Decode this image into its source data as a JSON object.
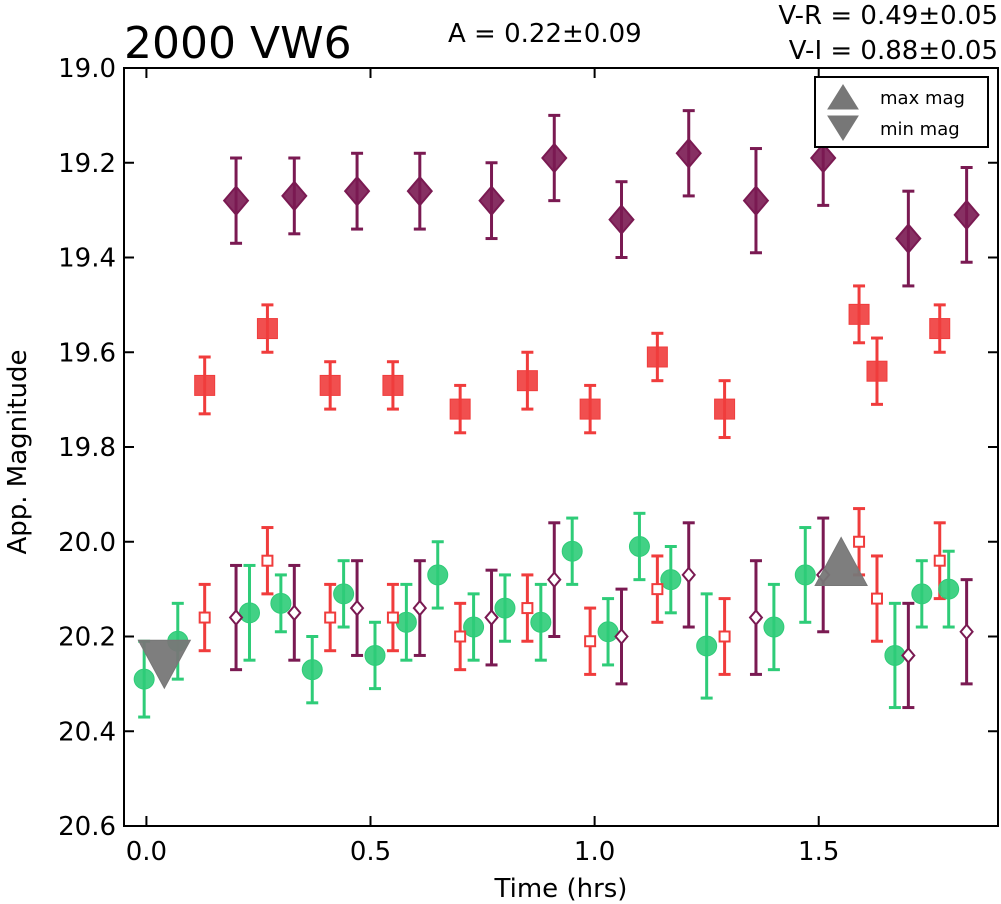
{
  "chart_data": {
    "type": "scatter",
    "title": "2000 VW6",
    "annotations": {
      "amplitude": "A  = 0.22±0.09",
      "v_r": "V-R = 0.49±0.05",
      "v_i": "V-I  = 0.88±0.05"
    },
    "xlabel": "Time (hrs)",
    "ylabel": "App. Magnitude",
    "xlim": [
      -0.05,
      1.9
    ],
    "ylim": [
      20.6,
      19.0
    ],
    "y_inverted": true,
    "grid": false,
    "x_ticks": [
      "0.0",
      "0.5",
      "1.0",
      "1.5"
    ],
    "y_ticks": [
      "19.0",
      "19.2",
      "19.4",
      "19.6",
      "19.8",
      "20.0",
      "20.2",
      "20.4",
      "20.6"
    ],
    "legend": {
      "placement": "top-right",
      "entries": [
        {
          "label": "max mag",
          "marker": "triangle-up",
          "color": "#777777"
        },
        {
          "label": "min mag",
          "marker": "triangle-down",
          "color": "#777777"
        }
      ]
    },
    "series": [
      {
        "marker": "diamond",
        "filled": true,
        "color": "#7a1a52",
        "points": [
          {
            "x": 0.2,
            "y": 19.28,
            "err": 0.09
          },
          {
            "x": 0.33,
            "y": 19.27,
            "err": 0.08
          },
          {
            "x": 0.47,
            "y": 19.26,
            "err": 0.08
          },
          {
            "x": 0.61,
            "y": 19.26,
            "err": 0.08
          },
          {
            "x": 0.77,
            "y": 19.28,
            "err": 0.08
          },
          {
            "x": 0.91,
            "y": 19.19,
            "err": 0.09
          },
          {
            "x": 1.06,
            "y": 19.32,
            "err": 0.08
          },
          {
            "x": 1.21,
            "y": 19.18,
            "err": 0.09
          },
          {
            "x": 1.36,
            "y": 19.28,
            "err": 0.11
          },
          {
            "x": 1.51,
            "y": 19.19,
            "err": 0.1
          },
          {
            "x": 1.7,
            "y": 19.36,
            "err": 0.1
          },
          {
            "x": 1.83,
            "y": 19.31,
            "err": 0.1
          }
        ]
      },
      {
        "marker": "square",
        "filled": true,
        "color": "#f03c3c",
        "points": [
          {
            "x": 0.13,
            "y": 19.67,
            "err": 0.06
          },
          {
            "x": 0.27,
            "y": 19.55,
            "err": 0.05
          },
          {
            "x": 0.41,
            "y": 19.67,
            "err": 0.05
          },
          {
            "x": 0.55,
            "y": 19.67,
            "err": 0.05
          },
          {
            "x": 0.7,
            "y": 19.72,
            "err": 0.05
          },
          {
            "x": 0.85,
            "y": 19.66,
            "err": 0.06
          },
          {
            "x": 0.99,
            "y": 19.72,
            "err": 0.05
          },
          {
            "x": 1.14,
            "y": 19.61,
            "err": 0.05
          },
          {
            "x": 1.29,
            "y": 19.72,
            "err": 0.06
          },
          {
            "x": 1.59,
            "y": 19.52,
            "err": 0.06
          },
          {
            "x": 1.63,
            "y": 19.64,
            "err": 0.07
          },
          {
            "x": 1.77,
            "y": 19.55,
            "err": 0.05
          }
        ]
      },
      {
        "marker": "circle",
        "filled": true,
        "color": "#2ecc78",
        "points": [
          {
            "x": -0.005,
            "y": 20.29,
            "err": 0.08
          },
          {
            "x": 0.07,
            "y": 20.21,
            "err": 0.08
          },
          {
            "x": 0.23,
            "y": 20.15,
            "err": 0.1
          },
          {
            "x": 0.3,
            "y": 20.13,
            "err": 0.06
          },
          {
            "x": 0.37,
            "y": 20.27,
            "err": 0.07
          },
          {
            "x": 0.44,
            "y": 20.11,
            "err": 0.07
          },
          {
            "x": 0.51,
            "y": 20.24,
            "err": 0.07
          },
          {
            "x": 0.58,
            "y": 20.17,
            "err": 0.08
          },
          {
            "x": 0.65,
            "y": 20.07,
            "err": 0.07
          },
          {
            "x": 0.73,
            "y": 20.18,
            "err": 0.07
          },
          {
            "x": 0.8,
            "y": 20.14,
            "err": 0.07
          },
          {
            "x": 0.88,
            "y": 20.17,
            "err": 0.08
          },
          {
            "x": 0.95,
            "y": 20.02,
            "err": 0.07
          },
          {
            "x": 1.03,
            "y": 20.19,
            "err": 0.07
          },
          {
            "x": 1.1,
            "y": 20.01,
            "err": 0.07
          },
          {
            "x": 1.17,
            "y": 20.08,
            "err": 0.07
          },
          {
            "x": 1.25,
            "y": 20.22,
            "err": 0.11
          },
          {
            "x": 1.4,
            "y": 20.18,
            "err": 0.09
          },
          {
            "x": 1.47,
            "y": 20.07,
            "err": 0.1
          },
          {
            "x": 1.67,
            "y": 20.24,
            "err": 0.11
          },
          {
            "x": 1.73,
            "y": 20.11,
            "err": 0.07
          },
          {
            "x": 1.79,
            "y": 20.1,
            "err": 0.08
          }
        ]
      },
      {
        "marker": "square",
        "filled": false,
        "color": "#f03c3c",
        "points": [
          {
            "x": 0.13,
            "y": 20.16,
            "err": 0.07
          },
          {
            "x": 0.27,
            "y": 20.04,
            "err": 0.07
          },
          {
            "x": 0.41,
            "y": 20.16,
            "err": 0.07
          },
          {
            "x": 0.55,
            "y": 20.16,
            "err": 0.07
          },
          {
            "x": 0.7,
            "y": 20.2,
            "err": 0.07
          },
          {
            "x": 0.85,
            "y": 20.14,
            "err": 0.07
          },
          {
            "x": 0.99,
            "y": 20.21,
            "err": 0.07
          },
          {
            "x": 1.14,
            "y": 20.1,
            "err": 0.07
          },
          {
            "x": 1.29,
            "y": 20.2,
            "err": 0.08
          },
          {
            "x": 1.59,
            "y": 20.0,
            "err": 0.07
          },
          {
            "x": 1.63,
            "y": 20.12,
            "err": 0.09
          },
          {
            "x": 1.77,
            "y": 20.04,
            "err": 0.08
          }
        ]
      },
      {
        "marker": "diamond",
        "filled": false,
        "color": "#7a1a52",
        "points": [
          {
            "x": 0.2,
            "y": 20.16,
            "err": 0.11
          },
          {
            "x": 0.33,
            "y": 20.15,
            "err": 0.1
          },
          {
            "x": 0.47,
            "y": 20.14,
            "err": 0.1
          },
          {
            "x": 0.61,
            "y": 20.14,
            "err": 0.1
          },
          {
            "x": 0.77,
            "y": 20.16,
            "err": 0.1
          },
          {
            "x": 0.91,
            "y": 20.08,
            "err": 0.12
          },
          {
            "x": 1.06,
            "y": 20.2,
            "err": 0.1
          },
          {
            "x": 1.21,
            "y": 20.07,
            "err": 0.11
          },
          {
            "x": 1.36,
            "y": 20.16,
            "err": 0.12
          },
          {
            "x": 1.51,
            "y": 20.07,
            "err": 0.12
          },
          {
            "x": 1.7,
            "y": 20.24,
            "err": 0.11
          },
          {
            "x": 1.83,
            "y": 20.19,
            "err": 0.11
          }
        ]
      }
    ],
    "extrema": [
      {
        "kind": "max",
        "marker": "triangle-up",
        "x": 1.55,
        "y": 20.05,
        "color": "#777777"
      },
      {
        "kind": "min",
        "marker": "triangle-down",
        "x": 0.04,
        "y": 20.25,
        "color": "#777777"
      }
    ]
  }
}
